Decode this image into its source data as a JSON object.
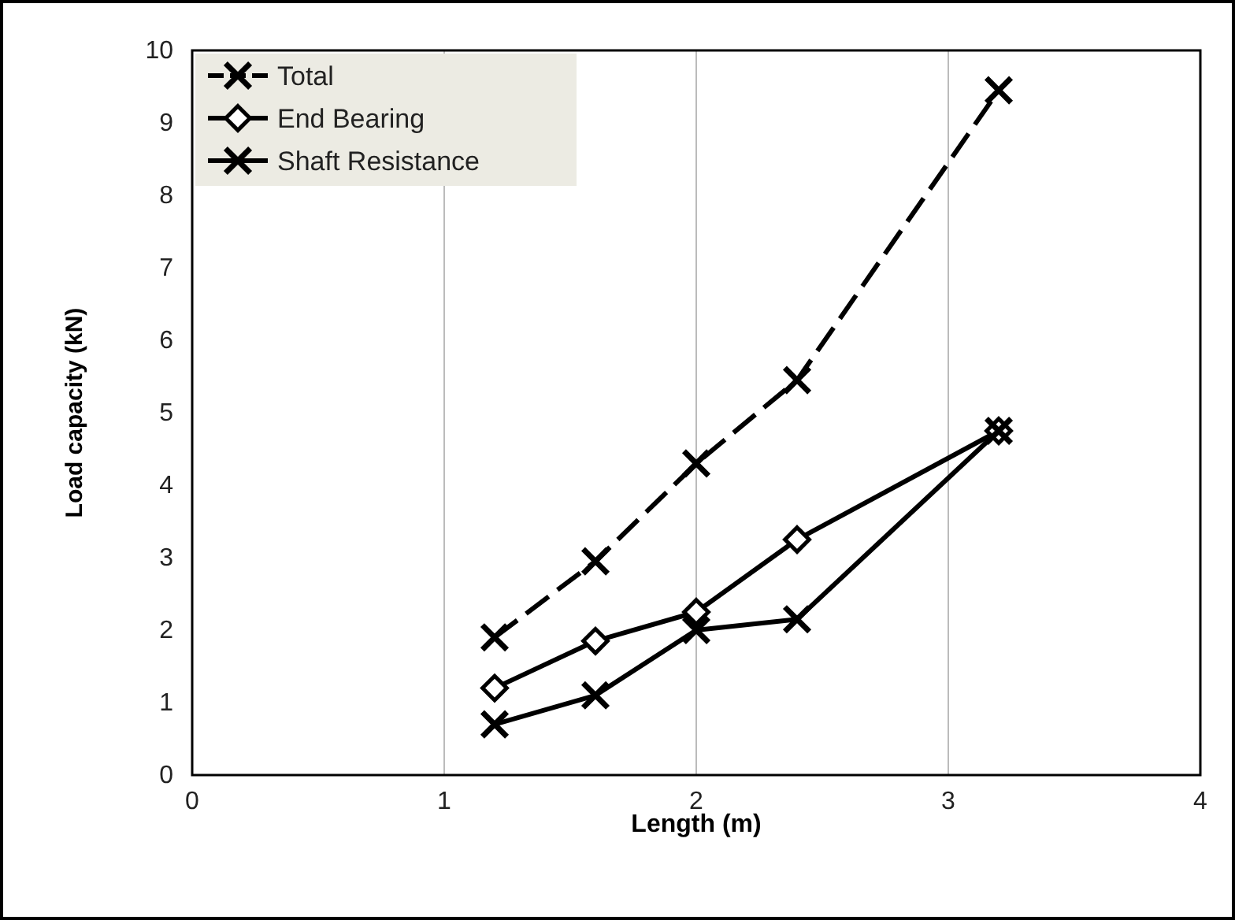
{
  "chart_data": {
    "type": "line",
    "xlabel": "Length (m)",
    "ylabel": "Load capacity (kN)",
    "xlim": [
      0,
      4
    ],
    "xticks": [
      0,
      1,
      2,
      3,
      4
    ],
    "ylim": [
      0,
      10
    ],
    "yticks": [
      0,
      1,
      2,
      3,
      4,
      5,
      6,
      7,
      8,
      9,
      10
    ],
    "grid": "x",
    "legend": "top left",
    "series": [
      {
        "name": "Total",
        "color": "#000000",
        "marker": "cross",
        "line_style": "dashed",
        "x": [
          1.2,
          1.6,
          2.0,
          2.4,
          3.2
        ],
        "values": [
          1.9,
          2.95,
          4.3,
          5.45,
          9.45
        ]
      },
      {
        "name": "End Bearing",
        "color": "#000000",
        "marker": "diamond",
        "line_style": "solid",
        "x": [
          1.2,
          1.6,
          2.0,
          2.4,
          3.2
        ],
        "values": [
          1.2,
          1.85,
          2.25,
          3.25,
          4.75
        ]
      },
      {
        "name": "Shaft Resistance",
        "color": "#000000",
        "marker": "cross",
        "line_style": "solid",
        "x": [
          1.2,
          1.6,
          2.0,
          2.4,
          3.2
        ],
        "values": [
          0.7,
          1.1,
          2.0,
          2.15,
          4.75
        ]
      }
    ]
  }
}
